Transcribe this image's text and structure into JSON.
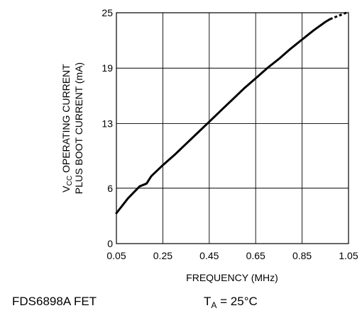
{
  "chart_data": {
    "type": "line",
    "xlabel": "FREQUENCY (MHz)",
    "ylabel_line1_prefix": "V",
    "ylabel_line1_sub": "CC",
    "ylabel_line1_rest": " OPERATING CURRENT",
    "ylabel_line2": "PLUS BOOT CURRENT (mA)",
    "xlim": [
      0.05,
      1.05
    ],
    "ylim": [
      0,
      25
    ],
    "x_ticks": [
      0.05,
      0.25,
      0.45,
      0.65,
      0.85,
      1.05
    ],
    "x_tick_labels": [
      "0.05",
      "0.25",
      "0.45",
      "0.65",
      "0.85",
      "1.05"
    ],
    "y_ticks": [
      0,
      6,
      13,
      19,
      25
    ],
    "y_tick_labels": [
      "0",
      "6",
      "13",
      "19",
      "25"
    ],
    "grid": true,
    "series": [
      {
        "x": [
          0.05,
          0.1,
          0.15,
          0.18,
          0.2,
          0.25,
          0.3,
          0.35,
          0.4,
          0.45,
          0.5,
          0.55,
          0.6,
          0.65,
          0.7,
          0.75,
          0.8,
          0.85,
          0.9,
          0.95,
          0.97
        ],
        "y": [
          3.3,
          4.9,
          6.2,
          6.5,
          7.3,
          8.5,
          9.6,
          10.8,
          12.0,
          13.2,
          14.4,
          15.6,
          16.8,
          17.9,
          19.0,
          20.0,
          21.1,
          22.1,
          23.1,
          24.0,
          24.3
        ],
        "color": "#000000"
      }
    ],
    "extrapolation": {
      "x": [
        0.97,
        1.05
      ],
      "y": [
        24.3,
        25.1
      ],
      "style": "dashed"
    }
  },
  "footer": {
    "device": "FDS6898A FET",
    "temp_prefix": "T",
    "temp_sub": "A",
    "temp_rest": " = 25°C"
  }
}
